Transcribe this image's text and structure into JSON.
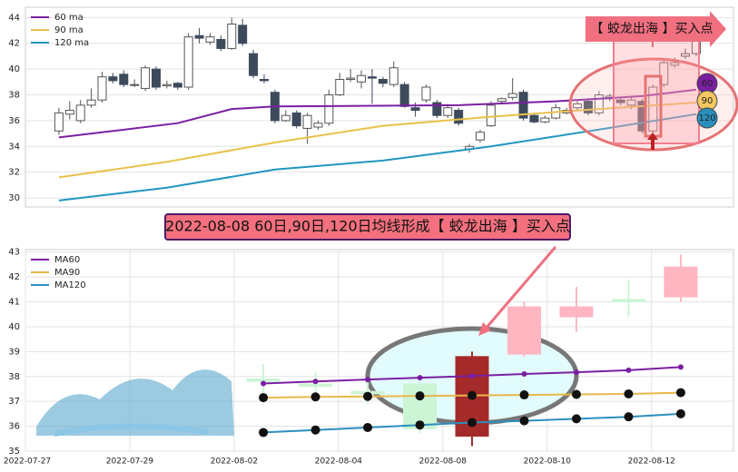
{
  "chart_data": [
    {
      "type": "candlestick",
      "legend": "upper left",
      "grid": true,
      "xlim": [
        -3.1,
        62.45
      ],
      "ylim": [
        29.3,
        44.8
      ],
      "yticks": [
        30,
        32,
        34,
        36,
        38,
        40,
        42,
        44
      ],
      "up_color": "#ffffff",
      "down_color": "#3d4a5c",
      "open": [
        35.2,
        36.5,
        36.0,
        37.2,
        37.6,
        39.4,
        39.6,
        38.8,
        38.5,
        40.0,
        38.7,
        38.9,
        38.6,
        42.6,
        42.1,
        42.3,
        41.6,
        43.4,
        41.2,
        39.2,
        38.2,
        36.0,
        36.6,
        35.4,
        35.5,
        35.8,
        38.0,
        39.2,
        39.0,
        39.4,
        39.2,
        38.8,
        38.8,
        37.0,
        37.6,
        37.4,
        36.4,
        36.8,
        33.8,
        34.5,
        35.6,
        37.5,
        37.8,
        38.2,
        36.4,
        35.9,
        36.2,
        36.6,
        37.0,
        37.5,
        36.6,
        37.7,
        37.6,
        37.2,
        37.5,
        35.2,
        38.8,
        40.3,
        41.0,
        41.2
      ],
      "close": [
        36.6,
        36.8,
        37.2,
        37.6,
        39.4,
        39.1,
        38.8,
        38.8,
        40.1,
        38.6,
        38.8,
        38.6,
        42.5,
        42.4,
        42.5,
        41.6,
        43.5,
        42.0,
        39.5,
        39.1,
        36.0,
        36.4,
        35.6,
        36.4,
        35.8,
        38.0,
        39.2,
        39.3,
        39.5,
        39.3,
        38.9,
        40.1,
        37.1,
        36.8,
        38.6,
        36.4,
        37.0,
        35.8,
        34.0,
        35.1,
        37.2,
        37.7,
        38.1,
        36.2,
        35.9,
        36.2,
        37.0,
        36.8,
        37.3,
        36.6,
        38.0,
        37.9,
        37.4,
        37.6,
        35.2,
        38.6,
        40.5,
        40.5,
        41.2,
        43.0
      ],
      "high": [
        37.0,
        37.5,
        37.6,
        38.5,
        39.8,
        39.7,
        39.9,
        39.2,
        40.3,
        40.2,
        39.1,
        39.0,
        42.8,
        43.2,
        42.8,
        42.6,
        44.0,
        43.9,
        41.5,
        39.6,
        38.4,
        36.8,
        36.8,
        36.6,
        36.0,
        38.4,
        39.7,
        40.0,
        39.9,
        40.0,
        39.4,
        40.6,
        39.0,
        37.4,
        38.8,
        37.6,
        37.3,
        37.0,
        34.2,
        35.3,
        37.5,
        37.8,
        39.3,
        38.4,
        36.6,
        36.4,
        37.3,
        37.0,
        37.6,
        37.7,
        38.3,
        38.1,
        37.8,
        37.8,
        37.7,
        38.8,
        40.7,
        40.9,
        41.6,
        43.4
      ],
      "low": [
        34.9,
        36.1,
        35.8,
        37.0,
        37.4,
        38.9,
        38.6,
        38.6,
        38.3,
        38.4,
        38.5,
        38.4,
        38.4,
        42.0,
        41.9,
        41.4,
        41.5,
        41.8,
        39.3,
        38.9,
        35.8,
        35.9,
        35.4,
        34.2,
        35.3,
        35.6,
        37.9,
        39.0,
        38.5,
        37.3,
        38.6,
        38.6,
        37.0,
        36.3,
        37.4,
        36.2,
        36.2,
        35.6,
        33.5,
        34.3,
        35.5,
        37.4,
        37.6,
        36.0,
        35.8,
        35.8,
        36.1,
        36.5,
        36.8,
        36.4,
        36.4,
        37.5,
        37.2,
        36.9,
        35.0,
        34.9,
        38.6,
        40.1,
        40.8,
        41.0
      ],
      "series": [
        {
          "name": "60 ma",
          "color": "#7b1fa2",
          "x": [
            0,
            11,
            16,
            20,
            37,
            46,
            54,
            59
          ],
          "values": [
            34.7,
            35.8,
            36.9,
            37.1,
            37.2,
            37.5,
            37.9,
            38.4
          ]
        },
        {
          "name": "90 ma",
          "color": "#e8c14a",
          "x": [
            0,
            10,
            20,
            30,
            40,
            50,
            59
          ],
          "values": [
            31.6,
            32.8,
            34.3,
            35.6,
            36.3,
            36.9,
            37.4
          ]
        },
        {
          "name": "120 ma",
          "color": "#2196c0",
          "x": [
            0,
            10,
            20,
            30,
            40,
            50,
            59
          ],
          "values": [
            29.8,
            30.8,
            32.2,
            32.9,
            34.0,
            35.3,
            36.5
          ]
        }
      ]
    },
    {
      "type": "candlestick",
      "legend": "upper left",
      "grid": true,
      "xlim": [
        0,
        13.57
      ],
      "ylim": [
        35,
        43.1
      ],
      "yticks": [
        35,
        36,
        37,
        38,
        39,
        40,
        41,
        42,
        43
      ],
      "xticks": [
        {
          "value": 0,
          "label": "2022-07-27"
        },
        {
          "value": 2,
          "label": "2022-07-29"
        },
        {
          "value": 4,
          "label": "2022-08-02"
        },
        {
          "value": 6,
          "label": "2022-08-04"
        },
        {
          "value": 8,
          "label": "2022-08-08"
        },
        {
          "value": 10,
          "label": "2022-08-10"
        },
        {
          "value": 12,
          "label": "2022-08-12"
        }
      ],
      "x": [
        4.56,
        5.56,
        6.56,
        7.56,
        8.56,
        9.56,
        10.56,
        11.56,
        12.56
      ],
      "open": [
        37.9,
        37.7,
        37.4,
        37.7,
        35.6,
        38.9,
        40.4,
        41.1,
        41.2
      ],
      "close": [
        37.8,
        37.6,
        37.3,
        35.9,
        38.8,
        40.8,
        40.8,
        41.0,
        42.4
      ],
      "high": [
        38.5,
        38.2,
        37.8,
        37.8,
        39.0,
        41.0,
        41.6,
        41.9,
        42.9
      ],
      "low": [
        36.9,
        37.0,
        36.9,
        35.7,
        35.2,
        38.8,
        39.8,
        40.4,
        41.0
      ],
      "candle_colors": [
        "#ccf5d6",
        "#ccf5d6",
        "#ccf5d6",
        "#ccf5d6",
        "#a52a2a",
        "#ffb6c1",
        "#ffb6c1",
        "#ccf5d6",
        "#ffb6c1"
      ],
      "series": [
        {
          "name": "MA60",
          "color": "#7b1fa2",
          "values": [
            37.72,
            37.8,
            37.88,
            37.95,
            38.02,
            38.1,
            38.17,
            38.25,
            38.38
          ]
        },
        {
          "name": "MA90",
          "color": "#e8b84a",
          "values": [
            37.15,
            37.18,
            37.2,
            37.22,
            37.24,
            37.26,
            37.28,
            37.3,
            37.35
          ]
        },
        {
          "name": "MA120",
          "color": "#2a8fbd",
          "values": [
            35.75,
            35.85,
            35.95,
            36.05,
            36.15,
            36.22,
            36.3,
            36.38,
            36.5
          ]
        }
      ]
    }
  ],
  "annotations": {
    "top_label": "【 蛟龙出海 】买入点",
    "ma_badges": [
      "60",
      "90",
      "120"
    ],
    "banner": "2022-08-08 60日,90日,120日均线形成【 蛟龙出海 】买入点"
  }
}
